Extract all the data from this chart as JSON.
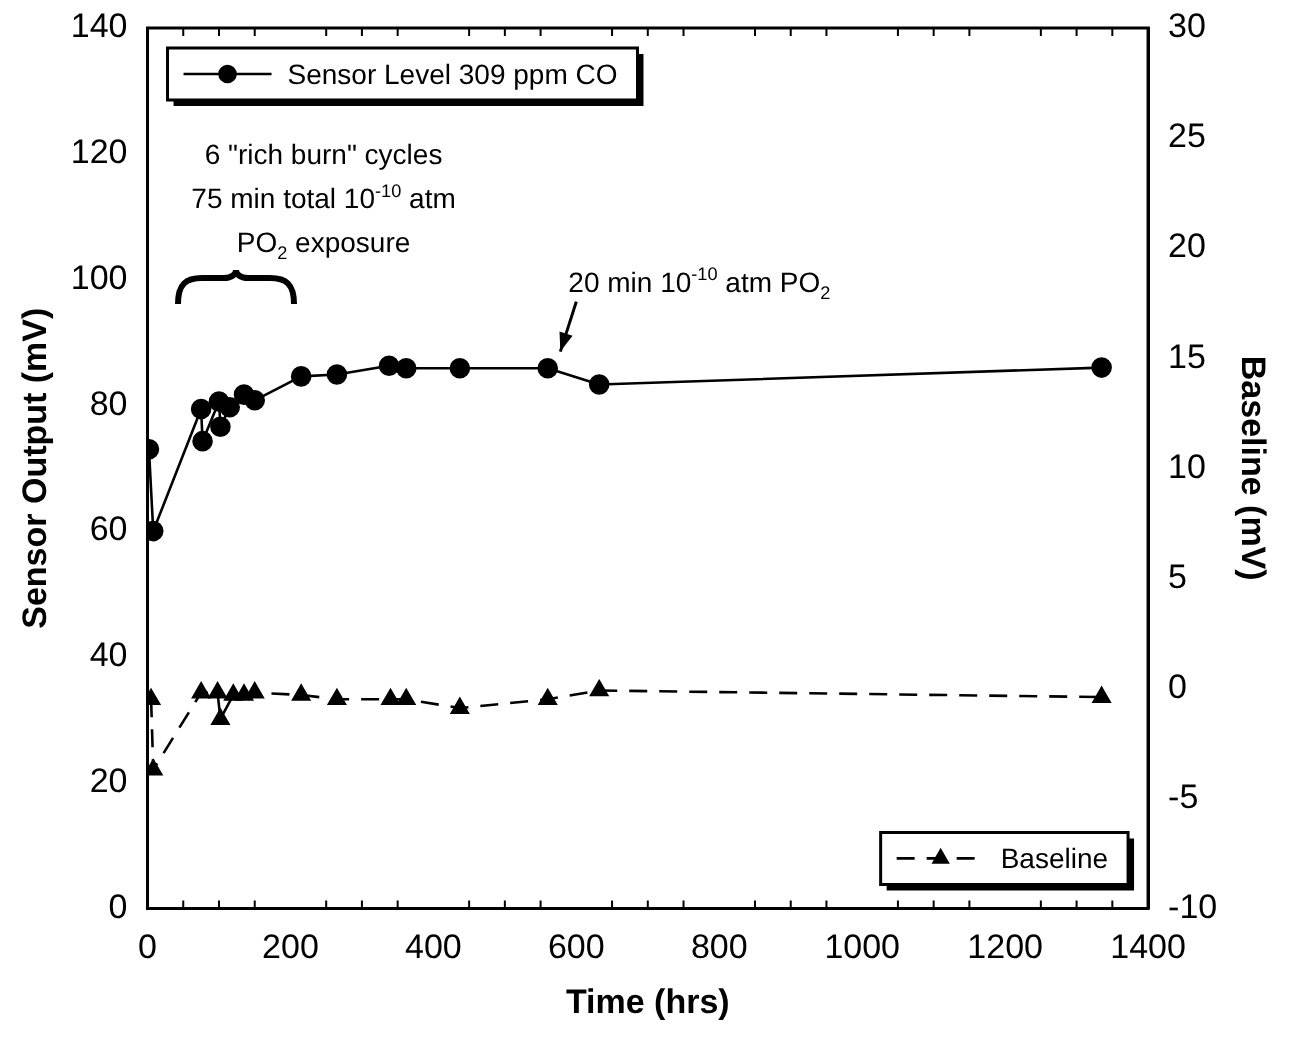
{
  "chart_data": {
    "type": "line",
    "xlabel": "Time (hrs)",
    "ylabel": "Sensor Output (mV)",
    "y2label": "Baseline (mV)",
    "xlim": [
      0,
      1400
    ],
    "xticks": [
      0,
      200,
      400,
      600,
      800,
      1000,
      1200,
      1400
    ],
    "ylim": [
      0,
      140
    ],
    "yticks": [
      0,
      20,
      40,
      60,
      80,
      100,
      120,
      140
    ],
    "y2lim": [
      -10,
      30
    ],
    "y2ticks": [
      -10,
      -5,
      0,
      5,
      10,
      15,
      20,
      25,
      30
    ],
    "grid": false,
    "legend": "top left",
    "series": [
      {
        "name": "Sensor Level 309 ppm CO",
        "color": "#000000",
        "marker": "circle",
        "line_style": "solid",
        "x": [
          2,
          8,
          75,
          77,
          100,
          102,
          115,
          135,
          150,
          215,
          265,
          338,
          362,
          437,
          560,
          632,
          1335
        ],
        "values": [
          73,
          60,
          79.4,
          74.3,
          80.6,
          76.6,
          79.7,
          81.7,
          80.8,
          84.6,
          84.9,
          86.3,
          85.9,
          85.9,
          85.9,
          83.3,
          86
        ]
      },
      {
        "name": "Baseline",
        "color": "#000000",
        "marker": "triangle",
        "line_style": "dashed",
        "axis": "y2",
        "x": [
          5,
          8,
          75,
          98,
          102,
          120,
          135,
          150,
          215,
          265,
          340,
          362,
          437,
          560,
          632,
          1335
        ],
        "values": [
          -0.5,
          -3.7,
          -0.2,
          -0.2,
          -1.4,
          -0.3,
          -0.3,
          -0.2,
          -0.3,
          -0.5,
          -0.5,
          -0.5,
          -0.9,
          -0.5,
          -0.1,
          -0.4
        ]
      }
    ],
    "annotations": [
      "6 \"rich burn\" cycles",
      "75 min total 10$^{-10}$ atm PO$_{2}$ exposure",
      {
        "text": "20 min 10$^{-10}$ atm PO$_{2}$",
        "x": 600,
        "y": 86
      }
    ]
  }
}
